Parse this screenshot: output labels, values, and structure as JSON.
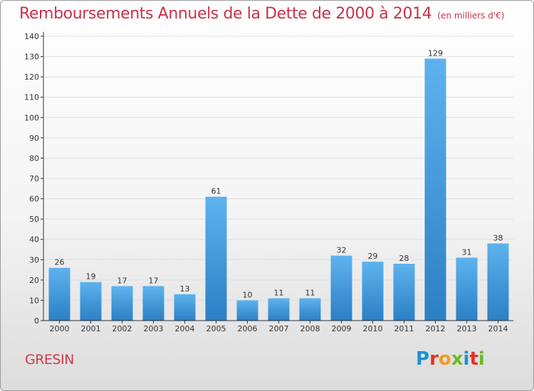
{
  "header": {
    "title": "Remboursements Annuels de la Dette de 2000 à 2014",
    "unit": "(en milliers d'€)"
  },
  "footer": {
    "place": "GRESIN",
    "logo_text": "Proxiti",
    "logo_colors": [
      "#1d8fd6",
      "#e8321e",
      "#f39a1e",
      "#6cb82b",
      "#1d8fd6",
      "#e8321e",
      "#6cb82b"
    ]
  },
  "colors": {
    "title": "#c8324a",
    "bar_light": "#5eb3ee",
    "bar_dark": "#2b7fc4",
    "axis": "#333333",
    "grid": "#dedede"
  },
  "chart_data": {
    "type": "bar",
    "title": "Remboursements Annuels de la Dette de 2000 à 2014",
    "subtitle": "(en milliers d'€)",
    "categories": [
      "2000",
      "2001",
      "2002",
      "2003",
      "2004",
      "2005",
      "2006",
      "2007",
      "2008",
      "2009",
      "2010",
      "2011",
      "2012",
      "2013",
      "2014"
    ],
    "values": [
      26,
      19,
      17,
      17,
      13,
      61,
      10,
      11,
      11,
      32,
      29,
      28,
      129,
      31,
      38
    ],
    "ylim": [
      0,
      140
    ],
    "yticks": [
      0,
      10,
      20,
      30,
      40,
      50,
      60,
      70,
      80,
      90,
      100,
      110,
      120,
      130,
      140
    ],
    "grid": true,
    "data_labels": true
  }
}
